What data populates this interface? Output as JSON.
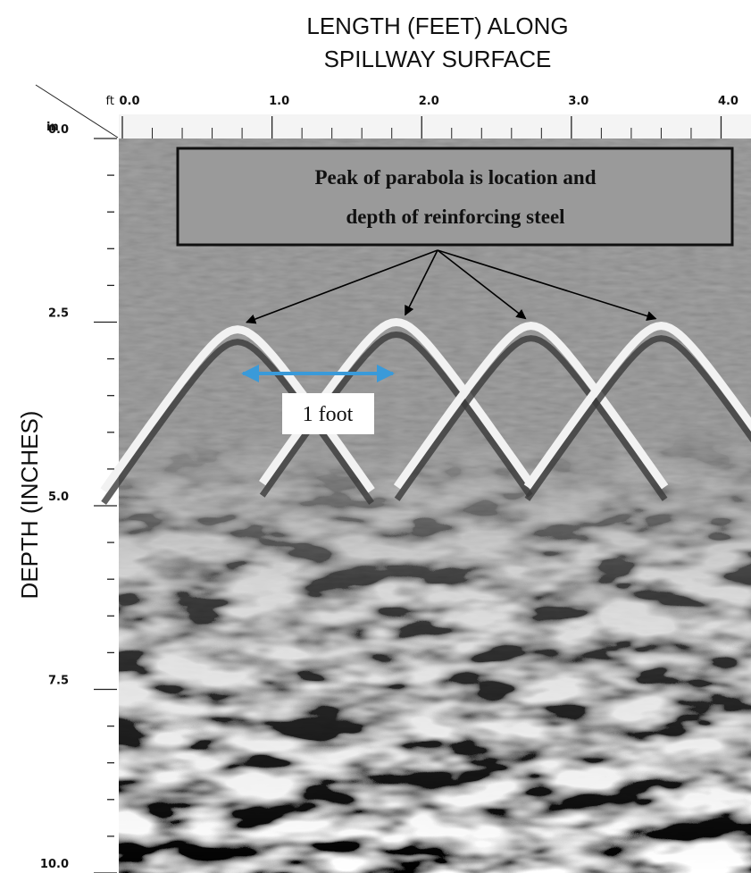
{
  "chart_data": {
    "type": "radargram",
    "x_label": [
      "LENGTH (FEET) ALONG",
      "SPILLWAY SURFACE"
    ],
    "y_label": "DEPTH (INCHES)",
    "x_unit": "ft",
    "y_unit": "in",
    "xlim": [
      0,
      4.2
    ],
    "ylim": [
      0,
      10
    ],
    "xticks": [
      {
        "value": 0,
        "label": "0.0"
      },
      {
        "value": 1,
        "label": "1.0"
      },
      {
        "value": 2,
        "label": "2.0"
      },
      {
        "value": 3,
        "label": "3.0"
      },
      {
        "value": 4,
        "label": "4.0"
      }
    ],
    "xticks_minor": [
      0.2,
      0.4,
      0.6,
      0.8,
      1.2,
      1.4,
      1.6,
      1.8,
      2.2,
      2.4,
      2.6,
      2.8,
      3.2,
      3.4,
      3.6,
      3.8
    ],
    "yticks": [
      {
        "value": 0,
        "label": "0.0"
      },
      {
        "value": 2.5,
        "label": "2.5"
      },
      {
        "value": 5,
        "label": "5.0"
      },
      {
        "value": 7.5,
        "label": "7.5"
      },
      {
        "value": 10,
        "label": "10.0"
      }
    ],
    "yticks_minor": [
      0.5,
      1,
      1.5,
      2,
      3,
      3.5,
      4,
      4.5,
      5.5,
      6,
      6.5,
      7,
      8,
      8.5,
      9,
      9.5
    ],
    "reflections": {
      "x": [
        0.77,
        1.83,
        2.73,
        3.6
      ],
      "values": [
        2.6,
        2.5,
        2.55,
        2.55
      ]
    },
    "annotations": {
      "box": [
        "Peak of parabola is location and",
        "depth of reinforcing steel"
      ],
      "scale": "1 foot"
    }
  }
}
